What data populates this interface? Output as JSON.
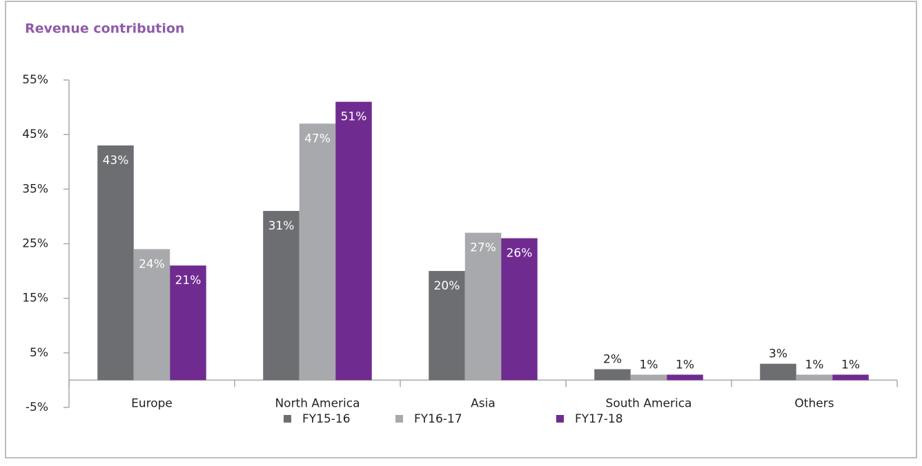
{
  "chart_data": {
    "type": "bar",
    "title": "Revenue contribution",
    "categories": [
      "Europe",
      "North America",
      "Asia",
      "South America",
      "Others"
    ],
    "series": [
      {
        "name": "FY15-16",
        "color": "#6d6e71",
        "values": [
          43,
          31,
          20,
          2,
          3
        ],
        "value_labels": [
          "43%",
          "31%",
          "20%",
          "2%",
          "3%"
        ]
      },
      {
        "name": "FY16-17",
        "color": "#a7a9ac",
        "values": [
          24,
          47,
          27,
          1,
          1
        ],
        "value_labels": [
          "24%",
          "47%",
          "27%",
          "1%",
          "1%"
        ]
      },
      {
        "name": "FY17-18",
        "color": "#702b91",
        "values": [
          21,
          51,
          26,
          1,
          1
        ],
        "value_labels": [
          "21%",
          "51%",
          "26%",
          "1%",
          "1%"
        ]
      }
    ],
    "ylim": [
      -5,
      55
    ],
    "yticks": [
      {
        "value": -5,
        "label": "-5%"
      },
      {
        "value": 5,
        "label": "5%"
      },
      {
        "value": 15,
        "label": "15%"
      },
      {
        "value": 25,
        "label": "25%"
      },
      {
        "value": 35,
        "label": "35%"
      },
      {
        "value": 45,
        "label": "45%"
      },
      {
        "value": 55,
        "label": "55%"
      }
    ],
    "grid": false,
    "legend": "bottom"
  }
}
